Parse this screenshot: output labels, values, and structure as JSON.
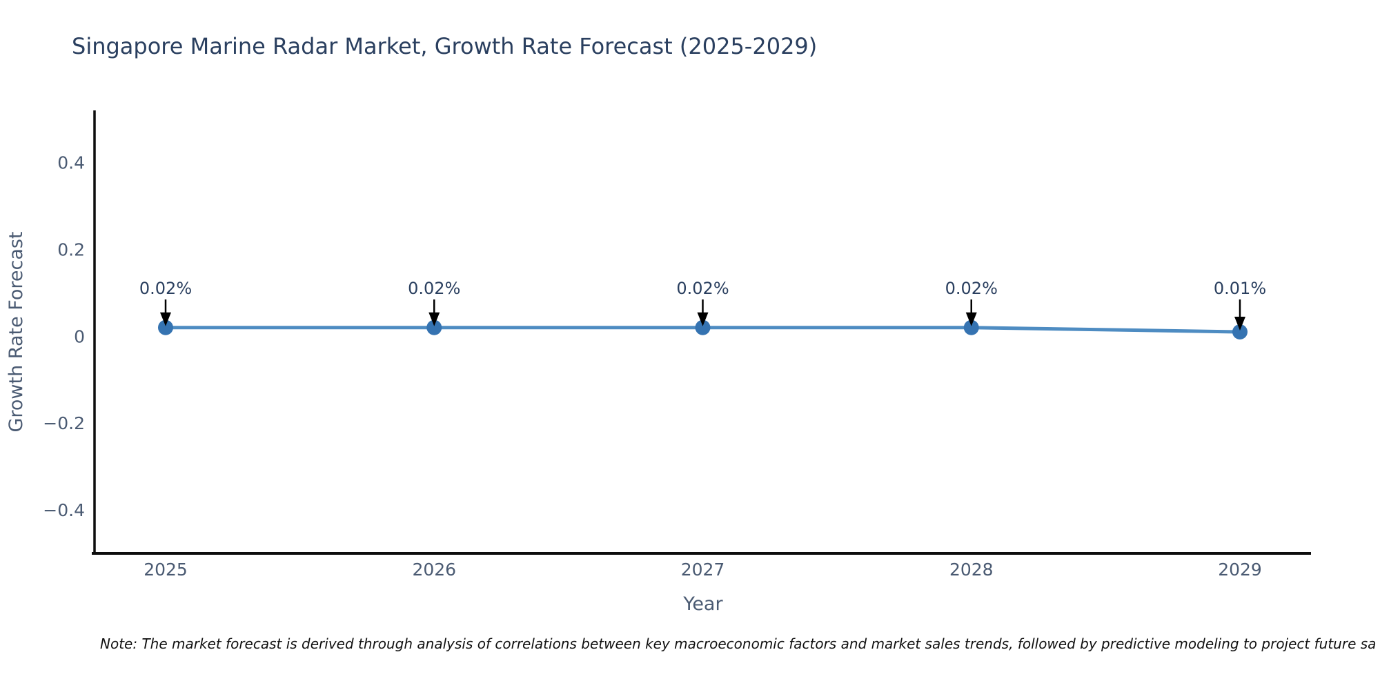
{
  "title": "Singapore Marine Radar Market, Growth Rate Forecast (2025-2029)",
  "note": "Note: The market forecast is derived through analysis of correlations between key macroeconomic factors and market sales trends, followed by predictive modeling to project future sa",
  "chart_data": {
    "type": "line",
    "title": "Singapore Marine Radar Market, Growth Rate Forecast (2025-2029)",
    "x": [
      "2025",
      "2026",
      "2027",
      "2028",
      "2029"
    ],
    "series": [
      {
        "name": "Growth Rate Forecast",
        "values": [
          0.02,
          0.02,
          0.02,
          0.02,
          0.01
        ]
      }
    ],
    "point_labels": [
      "0.02%",
      "0.02%",
      "0.02%",
      "0.02%",
      "0.01%"
    ],
    "xlabel": "Year",
    "ylabel": "Growth Rate Forecast",
    "yticks": {
      "values": [
        0.4,
        0.2,
        0,
        -0.2,
        -0.4
      ],
      "labels": [
        "0.4",
        "0.2",
        "0",
        "−0.2",
        "−0.4"
      ]
    },
    "ylim": [
      -0.5,
      0.52
    ],
    "grid": false,
    "legend": "none",
    "marker_style": "circle-with-down-arrow-annotation",
    "colors": {
      "line": "#4e8cc2",
      "marker": "#3573b1",
      "spine": "#0d0d0d",
      "arrow": "#000000",
      "annotation_text": "#2a3f5f",
      "tick_text": "#4a5a72",
      "title_text": "#2a3f5f",
      "note_text": "#111111",
      "background": "#ffffff"
    }
  }
}
